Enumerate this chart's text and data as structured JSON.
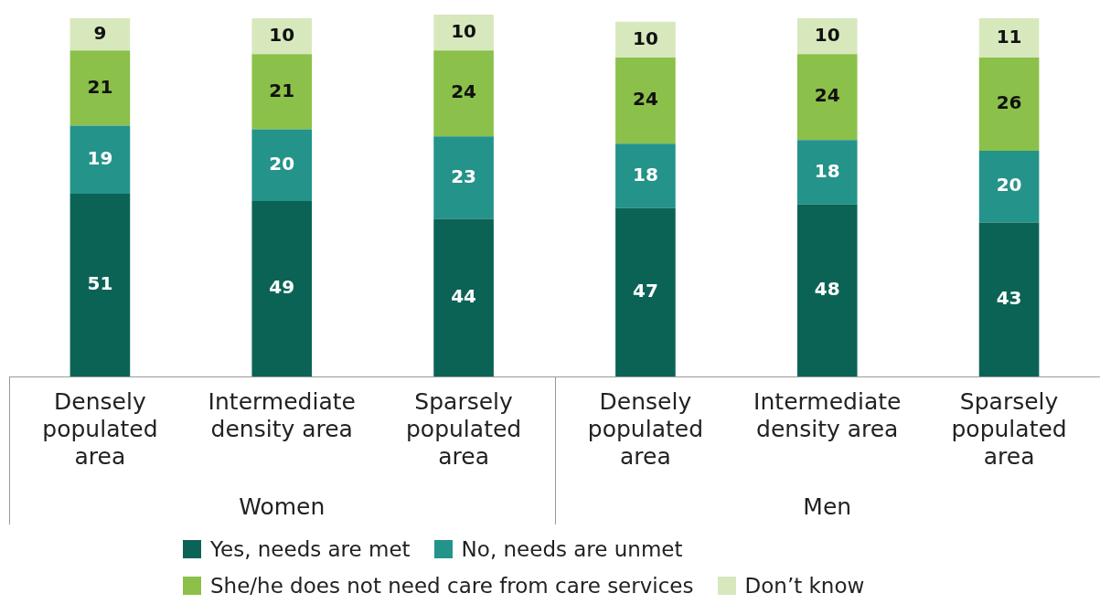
{
  "chart_data": {
    "type": "bar",
    "stacked": true,
    "tick_labels": "x",
    "data_labels": true,
    "legend": "bottom",
    "grid": false,
    "categories": [
      "Densely populated area",
      "Intermediate density area",
      "Sparsely populated area",
      "Densely populated area",
      "Intermediate density area",
      "Sparsely populated area"
    ],
    "series": [
      {
        "name": "Yes, needs are met",
        "color": "#0b6356",
        "values": [
          51,
          49,
          44,
          47,
          48,
          43
        ]
      },
      {
        "name": "No, needs are unmet",
        "color": "#24938a",
        "values": [
          19,
          20,
          23,
          18,
          18,
          20
        ]
      },
      {
        "name": "She/he does not need care from care services",
        "color": "#8bc04a",
        "values": [
          21,
          21,
          24,
          24,
          24,
          26
        ]
      },
      {
        "name": "Don’t know",
        "color": "#d7e8bd",
        "values": [
          9,
          10,
          10,
          10,
          10,
          11
        ]
      }
    ],
    "annotations": [
      "Women",
      "Men"
    ]
  }
}
